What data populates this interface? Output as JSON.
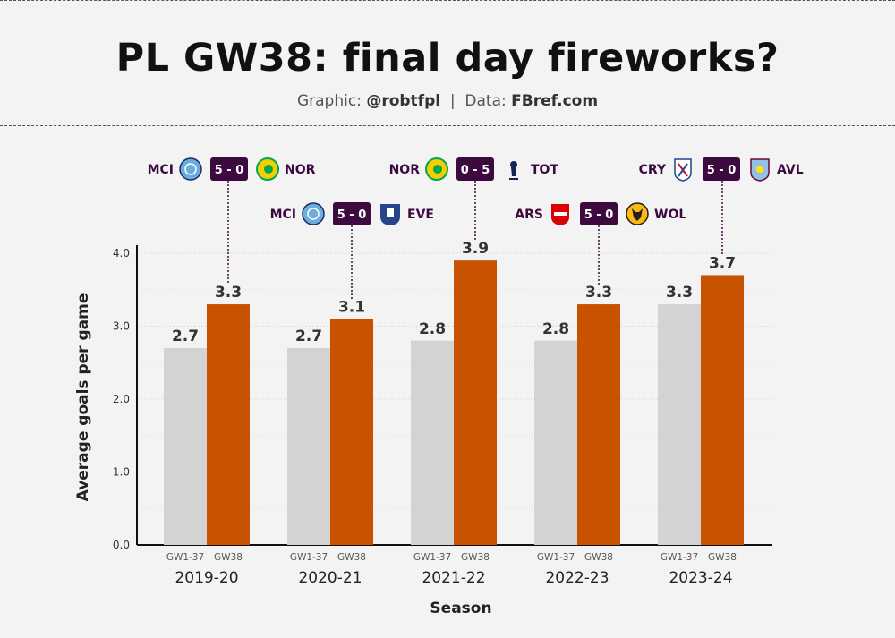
{
  "header": {
    "title": "PL GW38: final day fireworks?",
    "subtitle_prefix": "Graphic: ",
    "subtitle_author": "@robtfpl",
    "subtitle_sep": "  |  Data: ",
    "subtitle_source": "FBref.com"
  },
  "colors": {
    "gw1_37": "#d3d3d3",
    "gw38": "#c85200",
    "badge": "#3d0a3f",
    "axis": "#111111",
    "grid": "#dddddd"
  },
  "chart_data": {
    "type": "bar",
    "xlabel": "Season",
    "ylabel": "Average goals per game",
    "ylim": [
      0,
      4.0
    ],
    "yticks": [
      "0.0",
      "1.0",
      "2.0",
      "3.0",
      "4.0"
    ],
    "grid": true,
    "categories": [
      "2019-20",
      "2020-21",
      "2021-22",
      "2022-23",
      "2023-24"
    ],
    "bar_labels": [
      "GW1-37",
      "GW38"
    ],
    "series": [
      {
        "name": "GW1-37",
        "values": [
          2.7,
          2.7,
          2.8,
          2.8,
          3.3
        ],
        "labels": [
          "2.7",
          "2.7",
          "2.8",
          "2.8",
          "3.3"
        ]
      },
      {
        "name": "GW38",
        "values": [
          3.3,
          3.1,
          3.9,
          3.3,
          3.7
        ],
        "labels": [
          "3.3",
          "3.1",
          "3.9",
          "3.3",
          "3.7"
        ]
      }
    ],
    "annotations": [
      {
        "season": "2019-20",
        "home": "MCI",
        "score": "5 - 0",
        "away": "NOR",
        "home_icon": "man-city-crest-icon",
        "away_icon": "norwich-crest-icon"
      },
      {
        "season": "2020-21",
        "home": "MCI",
        "score": "5 - 0",
        "away": "EVE",
        "home_icon": "man-city-crest-icon",
        "away_icon": "everton-crest-icon"
      },
      {
        "season": "2021-22",
        "home": "NOR",
        "score": "0 - 5",
        "away": "TOT",
        "home_icon": "norwich-crest-icon",
        "away_icon": "tottenham-crest-icon"
      },
      {
        "season": "2022-23",
        "home": "ARS",
        "score": "5 - 0",
        "away": "WOL",
        "home_icon": "arsenal-crest-icon",
        "away_icon": "wolves-crest-icon"
      },
      {
        "season": "2023-24",
        "home": "CRY",
        "score": "5 - 0",
        "away": "AVL",
        "home_icon": "crystal-palace-crest-icon",
        "away_icon": "aston-villa-crest-icon"
      }
    ]
  }
}
